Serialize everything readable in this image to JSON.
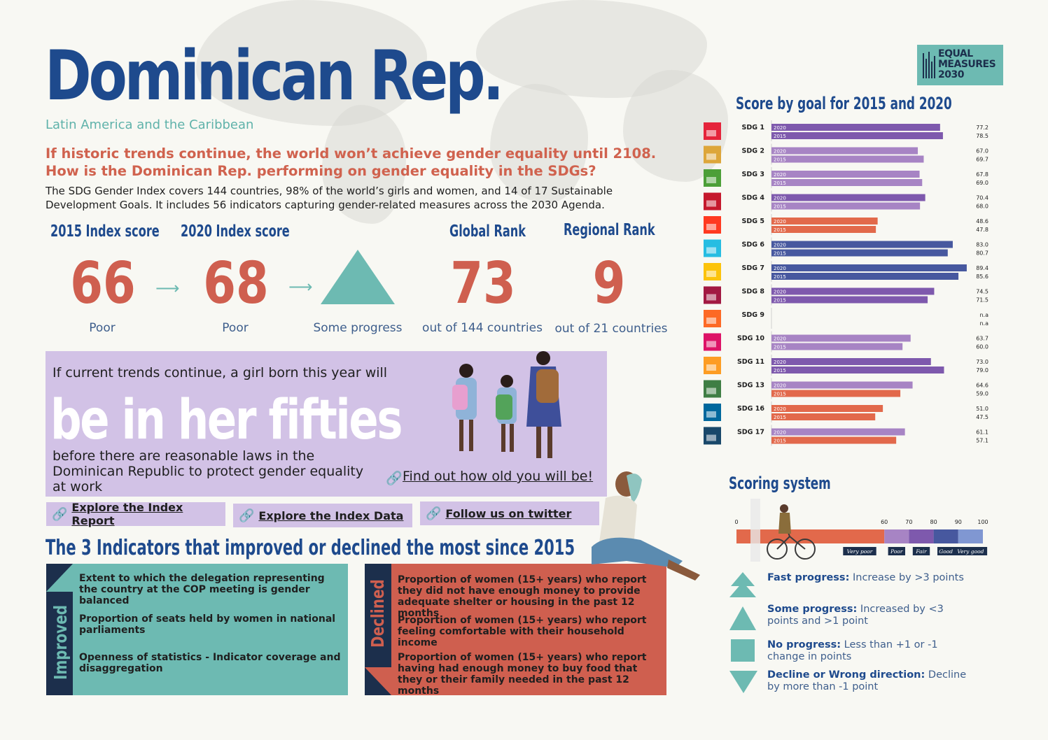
{
  "header": {
    "title": "Dominican Rep.",
    "region": "Latin America and the Caribbean",
    "question_line1": "If historic trends continue, the world won’t achieve gender equality until 2108.",
    "question_line2": "How is the Dominican Rep. performing on gender equality in the SDGs?",
    "desc_line1": "The SDG Gender Index covers 144 countries, 98% of the world’s girls and women, and 14 of 17 Sustainable",
    "desc_line2": "Development Goals. It includes 56 indicators capturing gender-related measures across the 2030 Agenda."
  },
  "logo": {
    "line1": "EQUAL",
    "line2": "MEASURES",
    "line3": "2030"
  },
  "scores": {
    "head_2015": "2015 Index score",
    "head_2020": "2020  Index score",
    "head_global": "Global Rank",
    "head_regional": "Regional Rank",
    "score_2015": "66",
    "score_2020": "68",
    "label_2015": "Poor",
    "label_2020": "Poor",
    "progress_label": "Some progress",
    "global_rank": "73",
    "global_rank_label": "out of 144 countries",
    "regional_rank": "9",
    "regional_rank_label": "out of 21 countries"
  },
  "girl": {
    "intro": "If current trends continue, a girl born this year will",
    "big": "be in her fifties",
    "after_line1": "before there are reasonable laws in the",
    "after_line2": "Dominican Republic to protect gender equality",
    "after_line3": "at work",
    "find_link": "Find out how old you will be!"
  },
  "links": {
    "report": "Explore the Index Report",
    "data": "Explore the Index Data",
    "twitter": "Follow us on twitter"
  },
  "indicators": {
    "title": "The 3 Indicators that improved or declined the most since 2015",
    "improved_label": "Improved",
    "declined_label": "Declined",
    "improved": [
      "Extent to which the delegation representing the country at the COP meeting is gender balanced",
      "Proportion of seats held by women in national parliaments",
      "Openness of statistics - Indicator coverage and disaggregation"
    ],
    "declined": [
      "Proportion of women (15+ years) who report they did not have enough money to provide adequate shelter or housing in the past 12 months",
      "Proportion of women (15+ years) who report feeling comfortable with their household income",
      "Proportion of women (15+ years) who report having had enough money to buy food that they or their family needed in the past 12 months"
    ]
  },
  "scoring": {
    "title": "Scoring system",
    "ticks": [
      "0",
      "60",
      "70",
      "80",
      "90",
      "100"
    ],
    "bands": [
      {
        "label": "Very poor",
        "from": 0,
        "to": 60,
        "color": "#e2694b"
      },
      {
        "label": "Poor",
        "from": 60,
        "to": 70,
        "color": "#a784c4"
      },
      {
        "label": "Fair",
        "from": 70,
        "to": 80,
        "color": "#7e59ad"
      },
      {
        "label": "Good",
        "from": 80,
        "to": 90,
        "color": "#47589f"
      },
      {
        "label": "Very good",
        "from": 90,
        "to": 100,
        "color": "#8097d2"
      }
    ],
    "legend": [
      {
        "icon": "double-triangle-up",
        "bold": "Fast progress:",
        "text": " Increase by >3 points"
      },
      {
        "icon": "triangle-up",
        "bold": "Some progress:",
        "text": " Increased by <3 points and >1 point"
      },
      {
        "icon": "square",
        "bold": "No progress:",
        "text": " Less than +1 or -1 change in points"
      },
      {
        "icon": "triangle-down",
        "bold": "Decline or Wrong direction:",
        "text": " Decline by more than -1 point"
      }
    ]
  },
  "colors": {
    "navy": "#1e4a8d",
    "coral": "#cf5f4f",
    "teal": "#6dbab2",
    "lavender": "#d2c2e6",
    "very_poor": "#e2694b",
    "poor": "#a784c4",
    "fair": "#7e59ad",
    "good": "#47589f"
  },
  "chart_data": {
    "type": "bar",
    "title": "Score by goal for 2015 and 2020",
    "orientation": "horizontal",
    "xlim": [
      0,
      100
    ],
    "series_labels": [
      "2020",
      "2015"
    ],
    "categories": [
      "SDG 1",
      "SDG 2",
      "SDG 3",
      "SDG 4",
      "SDG 5",
      "SDG 6",
      "SDG 7",
      "SDG 8",
      "SDG 9",
      "SDG 10",
      "SDG 11",
      "SDG 13",
      "SDG 16",
      "SDG 17"
    ],
    "sdg_icon_colors": [
      "#e5243b",
      "#dda63a",
      "#4c9f38",
      "#c5192d",
      "#ff3a21",
      "#26bde2",
      "#fcc30b",
      "#a21942",
      "#fd6925",
      "#dd1367",
      "#fd9d24",
      "#3f7e44",
      "#00689d",
      "#19486a"
    ],
    "values_2020": [
      77.2,
      67.0,
      67.8,
      70.4,
      48.6,
      83.0,
      89.4,
      74.5,
      null,
      63.7,
      73.0,
      64.6,
      51.0,
      61.1
    ],
    "values_2015": [
      78.5,
      69.7,
      69.0,
      68.0,
      47.8,
      80.7,
      85.6,
      71.5,
      null,
      60.0,
      79.0,
      59.0,
      47.5,
      57.1
    ],
    "labels_2020": [
      "77.2",
      "67.0",
      "67.8",
      "70.4",
      "48.6",
      "83.0",
      "89.4",
      "74.5",
      "n.a",
      "63.7",
      "73.0",
      "64.6",
      "51.0",
      "61.1"
    ],
    "labels_2015": [
      "78.5",
      "69.7",
      "69.0",
      "68.0",
      "47.8",
      "80.7",
      "85.6",
      "71.5",
      "n.a",
      "60.0",
      "79.0",
      "59.0",
      "47.5",
      "57.1"
    ]
  }
}
